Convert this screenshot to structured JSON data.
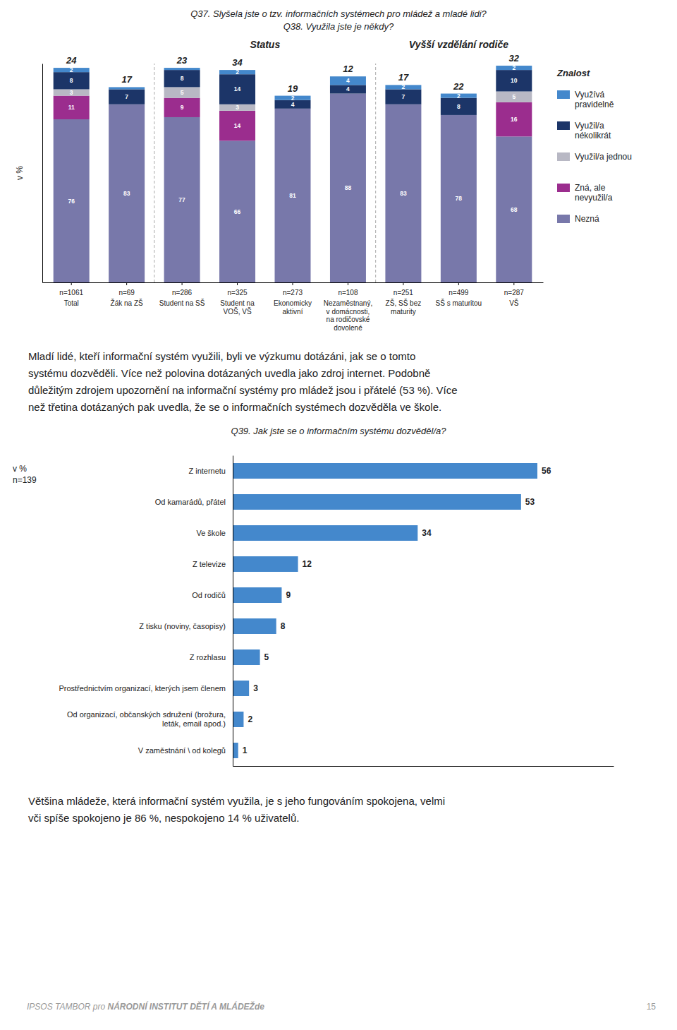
{
  "chart_data": [
    {
      "type": "bar",
      "stacked": true,
      "title": "Q37. Slyšela jste o tzv. informačních systémech pro mládež a mladé lidi?",
      "subtitle": "Q38. Využila jste je někdy?",
      "ylabel": "v %",
      "categories": [
        "Total",
        "Žák na ZŠ",
        "Student na SŠ",
        "Student na\nVOŠ, VŠ",
        "Ekonomicky\naktivní",
        "Nezaměstnaný,\nv domácnosti,\nna rodičovské\ndovolené",
        "ZŠ, SŠ bez\nmaturity",
        "SŠ s maturitou",
        "VŠ"
      ],
      "sample_sizes": [
        "n=1061",
        "n=69",
        "n=286",
        "n=325",
        "n=273",
        "n=108",
        "n=251",
        "n=499",
        "n=287"
      ],
      "groups": [
        {
          "label": "Status",
          "first": "Student na SŠ",
          "last": "Nezaměstnaný,\nv domácnosti,\nna rodičovské\ndovolené"
        },
        {
          "label": "Vyšší vzdělání rodiče",
          "first": "ZŠ, SŠ bez\nmaturity",
          "last": "VŠ"
        }
      ],
      "series": [
        {
          "name": "Nezná",
          "color": "#7878aa",
          "values": [
            76,
            83,
            77,
            66,
            81,
            88,
            83,
            78,
            68
          ],
          "value_labels": [
            "76",
            "83",
            "77",
            "66",
            "81",
            "88",
            "83",
            "78",
            "68"
          ]
        },
        {
          "name": "Zná, ale\nnevyužil/a",
          "color": "#9b2d8e",
          "values": [
            11,
            0,
            9,
            14,
            0,
            0,
            0,
            0,
            16
          ],
          "value_labels": [
            "11",
            null,
            "9",
            "14",
            null,
            null,
            null,
            null,
            "16"
          ]
        },
        {
          "name": "Využil/a jednou",
          "color": "#b8b8c4",
          "values": [
            3,
            0,
            5,
            3,
            0,
            0,
            0,
            0,
            5
          ],
          "value_labels": [
            "3",
            null,
            "5",
            "3",
            null,
            null,
            null,
            null,
            "5"
          ]
        },
        {
          "name": "Využil/a\nnékolikrát",
          "color": "#1c3568",
          "values": [
            8,
            7,
            8,
            14,
            4,
            4,
            7,
            8,
            10
          ],
          "value_labels": [
            "8",
            "7",
            "8",
            "14",
            "4",
            "4",
            "7",
            "8",
            "10"
          ]
        },
        {
          "name": "Využívá\npravidelně",
          "color": "#4488cc",
          "values": [
            2,
            1,
            1,
            2,
            2,
            4,
            2,
            2,
            2
          ],
          "value_labels": [
            "2",
            null,
            null,
            "2",
            "2",
            "4",
            "2",
            "2",
            "2"
          ]
        }
      ],
      "totals": [
        24,
        17,
        23,
        34,
        19,
        12,
        17,
        22,
        32
      ],
      "legend_title": "Znalost",
      "legend": "right",
      "ylim": [
        0,
        102
      ],
      "yticks": [],
      "tick_labels": "x",
      "data_labels": true,
      "grid": false
    },
    {
      "type": "bar",
      "orientation": "horizontal",
      "title": "Q39. Jak jste se o informačním systému dozvěděl/a?",
      "ylabel": "v %",
      "sample_size": "n=139",
      "categories": [
        "Z internetu",
        "Od kamarádů, přátel",
        "Ve škole",
        "Z televize",
        "Od rodičů",
        "Z tisku (noviny, časopisy)",
        "Z rozhlasu",
        "Prostřednictvím organizací, kterých jsem členem",
        "Od organizací, občanských sdružení (brožura,\nleták, email apod.)",
        "V zaměstnání \\ od kolegů"
      ],
      "values": [
        56,
        53,
        34,
        12,
        9,
        8,
        5,
        3,
        2,
        1
      ],
      "color": "#4488cc",
      "xlim": [
        0,
        70
      ],
      "xticks": [],
      "tick_labels": "y",
      "data_labels": true,
      "grid": false
    }
  ],
  "page_text": {
    "paragraph_1": [
      "Mladí lidé, kteří informační systém využili, byli ve výzkumu dotázáni, jak se o tomto",
      "systému dozvěděli. Více než polovina dotázaných uvedla jako zdroj internet. Podobně",
      "důležitým zdrojem upozornění na informační systémy pro mládež jsou i přátelé (53 %). Více",
      "než třetina dotázaných pak uvedla, že se o informačních systémech dozvěděla ve škole."
    ],
    "paragraph_2": [
      "Většina mládeže, která informační systém využila, je s jeho fungováním spokojena, velmi",
      "vči spíše spokojeno je 86 %, nespokojeno 14 % uživatelů."
    ],
    "footer": [
      "IPSOS TAMBOR ",
      "pro ",
      "NÁRODNÍ INSTITUT DĚTÍ A MLÁDEŽde"
    ],
    "page_number": "15"
  }
}
